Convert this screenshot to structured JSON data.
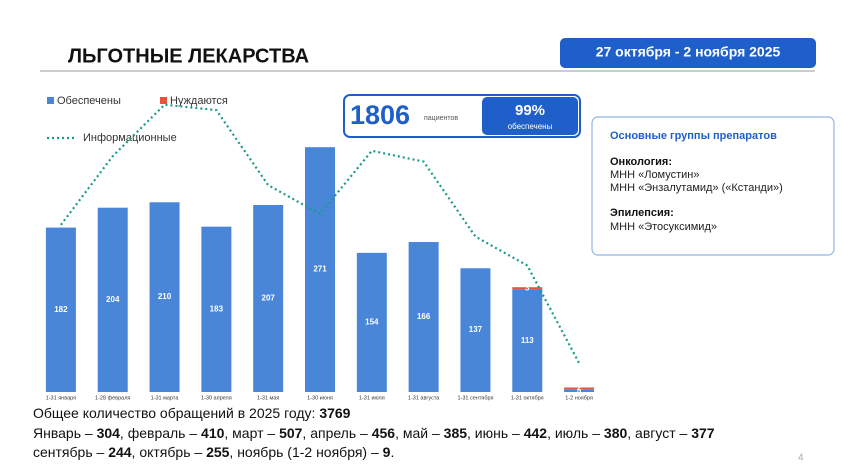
{
  "header": {
    "title": "ЛЬГОТНЫЕ ЛЕКАРСТВА",
    "date_range": "27 октября - 2 ноября 2025"
  },
  "stats": {
    "patients": 1806,
    "patients_label": "пациентов",
    "provided": "99%",
    "provided_label": "обеспечены"
  },
  "info_box": {
    "title": "Основные группы препаратов",
    "groups": [
      {
        "name": "Онкология:",
        "items": [
          "МНН «Ломустин»",
          "МНН «Энзалутамид» («Кстанди»)"
        ]
      },
      {
        "name": "Эпилепсия:",
        "items": [
          "МНН «Этосуксимид»"
        ]
      }
    ]
  },
  "chart_data": {
    "type": "bar",
    "categories": [
      "1-31 января",
      "1-28 февраля",
      "1-31 марта",
      "1-30 апреля",
      "1-31 мая",
      "1-30 июня",
      "1-31 июля",
      "1-31 августа",
      "1-31 сентября",
      "1-31 октября",
      "1-2 ноября"
    ],
    "series": [
      {
        "name": "Обеспечены",
        "color": "#4a86d8",
        "values": [
          182,
          204,
          210,
          183,
          207,
          271,
          154,
          166,
          137,
          113,
          3
        ]
      },
      {
        "name": "Нуждаются",
        "color": "#e8553a",
        "values": [
          null,
          null,
          null,
          null,
          null,
          null,
          null,
          null,
          null,
          3,
          2
        ]
      },
      {
        "name": "Информационные",
        "color": "#1a9a8a",
        "type": "line",
        "values": [
          185,
          261,
          318,
          312,
          229,
          197,
          267,
          255,
          172,
          140,
          32
        ]
      }
    ],
    "ylim": [
      0,
      290
    ],
    "stacked": true
  },
  "summary": {
    "label": "Общее количество обращений в 2025 году: ",
    "total": 3769,
    "months": [
      {
        "label": "Январь – ",
        "value": 304
      },
      {
        "label": ", февраль – ",
        "value": 410
      },
      {
        "label": ", март – ",
        "value": 507
      },
      {
        "label": ", апрель – ",
        "value": 456
      },
      {
        "label": ", май – ",
        "value": 385
      },
      {
        "label": ", июнь – ",
        "value": 442
      },
      {
        "label": ", июль – ",
        "value": 380
      },
      {
        "label": ", август – ",
        "value": 377
      },
      {
        "label": "сентябрь – ",
        "value": 244
      },
      {
        "label": ", октябрь – ",
        "value": 255
      },
      {
        "label": ", ноябрь (1-2 ноября) – ",
        "value": 9
      }
    ],
    "ending": "."
  },
  "page_number": 4
}
